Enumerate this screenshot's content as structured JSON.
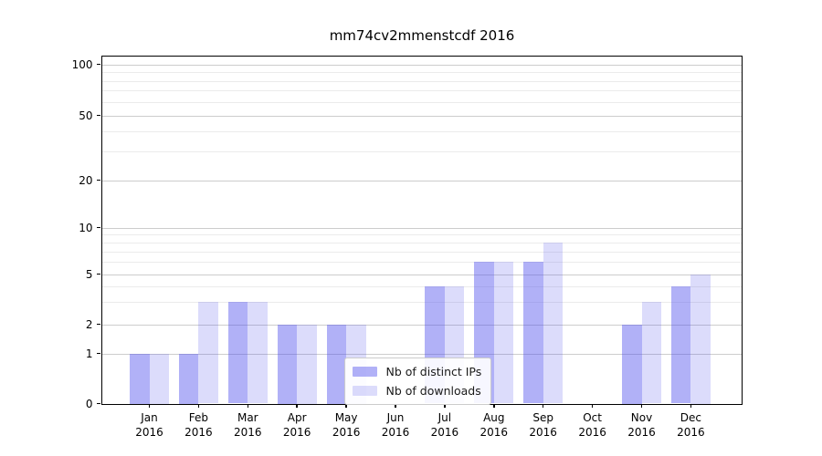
{
  "title": "mm74cv2mmenstcdf 2016",
  "chart_data": {
    "type": "bar",
    "title": "mm74cv2mmenstcdf 2016",
    "categories": [
      "Jan 2016",
      "Feb 2016",
      "Mar 2016",
      "Apr 2016",
      "May 2016",
      "Jun 2016",
      "Jul 2016",
      "Aug 2016",
      "Sep 2016",
      "Oct 2016",
      "Nov 2016",
      "Dec 2016"
    ],
    "x_tick_months": [
      "Jan",
      "Feb",
      "Mar",
      "Apr",
      "May",
      "Jun",
      "Jul",
      "Aug",
      "Sep",
      "Oct",
      "Nov",
      "Dec"
    ],
    "x_tick_year": "2016",
    "series": [
      {
        "name": "Nb of distinct IPs",
        "color": "rgba(82,82,237,0.45)",
        "values": [
          1,
          1,
          3,
          2,
          2,
          0,
          4,
          6,
          6,
          0,
          2,
          4
        ]
      },
      {
        "name": "Nb of downloads",
        "color": "rgba(82,82,237,0.2)",
        "values": [
          1,
          3,
          3,
          2,
          2,
          0,
          4,
          6,
          8,
          0,
          3,
          5
        ]
      }
    ],
    "xlabel": "",
    "ylabel": "",
    "y_ticks": [
      0,
      1,
      2,
      5,
      10,
      20,
      50,
      100
    ],
    "y_minor_gridlines": [
      3,
      4,
      6,
      7,
      8,
      9,
      30,
      40,
      60,
      70,
      80,
      90
    ],
    "ylim": [
      0,
      100
    ],
    "yscale": "symlog",
    "grid": "horizontal major+minor",
    "legend_position": "inside lower-center"
  }
}
